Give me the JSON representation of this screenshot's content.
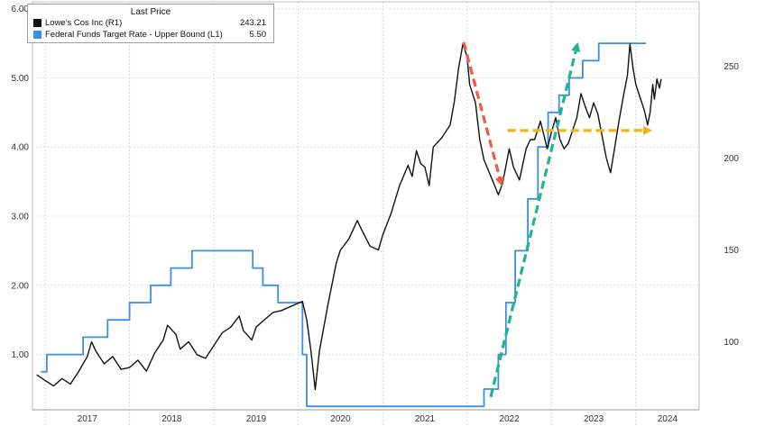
{
  "legend": {
    "title": "Last Price",
    "items": [
      {
        "name": "Lowe's Cos Inc  (R1)",
        "value": "243.21",
        "color": "#111111"
      },
      {
        "name": "Federal Funds Target Rate - Upper Bound  (L1)",
        "value": "5.50",
        "color": "#3a8ee6"
      }
    ]
  },
  "chart_data": {
    "type": "line",
    "title": "",
    "x_axis": {
      "categories": [
        "2017",
        "2018",
        "2019",
        "2020",
        "2021",
        "2022",
        "2023",
        "2024"
      ]
    },
    "left_axis": {
      "ticks": [
        "1.00",
        "2.00",
        "3.00",
        "4.00",
        "5.00",
        "6.00"
      ],
      "range": [
        0.2,
        6.1
      ]
    },
    "right_axis": {
      "ticks": [
        "100",
        "150",
        "200",
        "250"
      ],
      "range": [
        63,
        285
      ]
    },
    "grid": true,
    "series": [
      {
        "name": "Federal Funds Target Rate - Upper Bound",
        "axis": "left",
        "color": "#3a8ee6",
        "step": true,
        "points": [
          [
            2016.95,
            0.75
          ],
          [
            2017.02,
            1.0
          ],
          [
            2017.45,
            1.25
          ],
          [
            2017.74,
            1.5
          ],
          [
            2018.0,
            1.75
          ],
          [
            2018.25,
            2.0
          ],
          [
            2018.49,
            2.25
          ],
          [
            2018.74,
            2.5
          ],
          [
            2019.46,
            2.25
          ],
          [
            2019.58,
            2.0
          ],
          [
            2019.76,
            1.75
          ],
          [
            2020.05,
            1.0
          ],
          [
            2020.1,
            0.25
          ],
          [
            2022.2,
            0.5
          ],
          [
            2022.37,
            1.0
          ],
          [
            2022.46,
            1.75
          ],
          [
            2022.57,
            2.5
          ],
          [
            2022.72,
            3.25
          ],
          [
            2022.84,
            4.0
          ],
          [
            2022.96,
            4.5
          ],
          [
            2023.09,
            4.75
          ],
          [
            2023.21,
            5.0
          ],
          [
            2023.37,
            5.25
          ],
          [
            2023.56,
            5.5
          ],
          [
            2024.12,
            5.5
          ]
        ]
      },
      {
        "name": "Lowe's Cos Inc",
        "axis": "right",
        "color": "#111111",
        "points": [
          [
            2016.9,
            82
          ],
          [
            2017.0,
            79
          ],
          [
            2017.1,
            76
          ],
          [
            2017.2,
            80
          ],
          [
            2017.3,
            77
          ],
          [
            2017.4,
            84
          ],
          [
            2017.5,
            92
          ],
          [
            2017.55,
            100
          ],
          [
            2017.6,
            95
          ],
          [
            2017.7,
            88
          ],
          [
            2017.8,
            92
          ],
          [
            2017.9,
            85
          ],
          [
            2018.0,
            86
          ],
          [
            2018.1,
            90
          ],
          [
            2018.2,
            84
          ],
          [
            2018.3,
            94
          ],
          [
            2018.4,
            101
          ],
          [
            2018.45,
            109
          ],
          [
            2018.55,
            104
          ],
          [
            2018.6,
            96
          ],
          [
            2018.7,
            100
          ],
          [
            2018.8,
            93
          ],
          [
            2018.9,
            91
          ],
          [
            2019.0,
            98
          ],
          [
            2019.1,
            105
          ],
          [
            2019.2,
            108
          ],
          [
            2019.3,
            114
          ],
          [
            2019.35,
            106
          ],
          [
            2019.45,
            101
          ],
          [
            2019.5,
            108
          ],
          [
            2019.6,
            112
          ],
          [
            2019.7,
            116
          ],
          [
            2019.8,
            117
          ],
          [
            2019.9,
            119
          ],
          [
            2020.0,
            121
          ],
          [
            2020.05,
            122
          ],
          [
            2020.1,
            112
          ],
          [
            2020.15,
            95
          ],
          [
            2020.2,
            74
          ],
          [
            2020.25,
            95
          ],
          [
            2020.35,
            120
          ],
          [
            2020.45,
            143
          ],
          [
            2020.5,
            150
          ],
          [
            2020.6,
            156
          ],
          [
            2020.7,
            166
          ],
          [
            2020.75,
            161
          ],
          [
            2020.85,
            152
          ],
          [
            2020.95,
            150
          ],
          [
            2021.0,
            158
          ],
          [
            2021.1,
            170
          ],
          [
            2021.2,
            185
          ],
          [
            2021.3,
            196
          ],
          [
            2021.35,
            190
          ],
          [
            2021.4,
            204
          ],
          [
            2021.45,
            197
          ],
          [
            2021.5,
            195
          ],
          [
            2021.55,
            185
          ],
          [
            2021.6,
            206
          ],
          [
            2021.7,
            211
          ],
          [
            2021.8,
            218
          ],
          [
            2021.85,
            231
          ],
          [
            2021.9,
            249
          ],
          [
            2021.95,
            262
          ],
          [
            2022.0,
            255
          ],
          [
            2022.03,
            240
          ],
          [
            2022.1,
            230
          ],
          [
            2022.15,
            210
          ],
          [
            2022.2,
            199
          ],
          [
            2022.3,
            188
          ],
          [
            2022.37,
            180
          ],
          [
            2022.42,
            186
          ],
          [
            2022.5,
            205
          ],
          [
            2022.55,
            195
          ],
          [
            2022.62,
            188
          ],
          [
            2022.7,
            205
          ],
          [
            2022.75,
            210
          ],
          [
            2022.8,
            210
          ],
          [
            2022.87,
            220
          ],
          [
            2022.95,
            205
          ],
          [
            2023.0,
            214
          ],
          [
            2023.05,
            222
          ],
          [
            2023.1,
            210
          ],
          [
            2023.15,
            205
          ],
          [
            2023.2,
            208
          ],
          [
            2023.3,
            222
          ],
          [
            2023.35,
            235
          ],
          [
            2023.4,
            228
          ],
          [
            2023.45,
            222
          ],
          [
            2023.5,
            230
          ],
          [
            2023.55,
            224
          ],
          [
            2023.6,
            212
          ],
          [
            2023.65,
            200
          ],
          [
            2023.7,
            192
          ],
          [
            2023.75,
            206
          ],
          [
            2023.8,
            220
          ],
          [
            2023.85,
            233
          ],
          [
            2023.9,
            245
          ],
          [
            2023.93,
            262
          ],
          [
            2023.97,
            248
          ],
          [
            2024.0,
            240
          ],
          [
            2024.05,
            233
          ],
          [
            2024.1,
            226
          ],
          [
            2024.14,
            218
          ],
          [
            2024.17,
            225
          ],
          [
            2024.2,
            240
          ],
          [
            2024.22,
            232
          ],
          [
            2024.25,
            243
          ],
          [
            2024.28,
            238
          ],
          [
            2024.3,
            243
          ]
        ]
      }
    ],
    "annotations": [
      {
        "type": "arrow",
        "color": "#ef5a4a",
        "from": [
          2021.96,
          263
        ],
        "to": [
          2022.4,
          187
        ]
      },
      {
        "type": "arrow",
        "color": "#1fb58f",
        "from": [
          2022.28,
          70
        ],
        "to": [
          2023.3,
          1000
        ]
      },
      {
        "type": "arrow",
        "color": "#f0b21a",
        "from": [
          2022.48,
          215
        ],
        "to": [
          2024.14,
          215
        ]
      }
    ]
  }
}
